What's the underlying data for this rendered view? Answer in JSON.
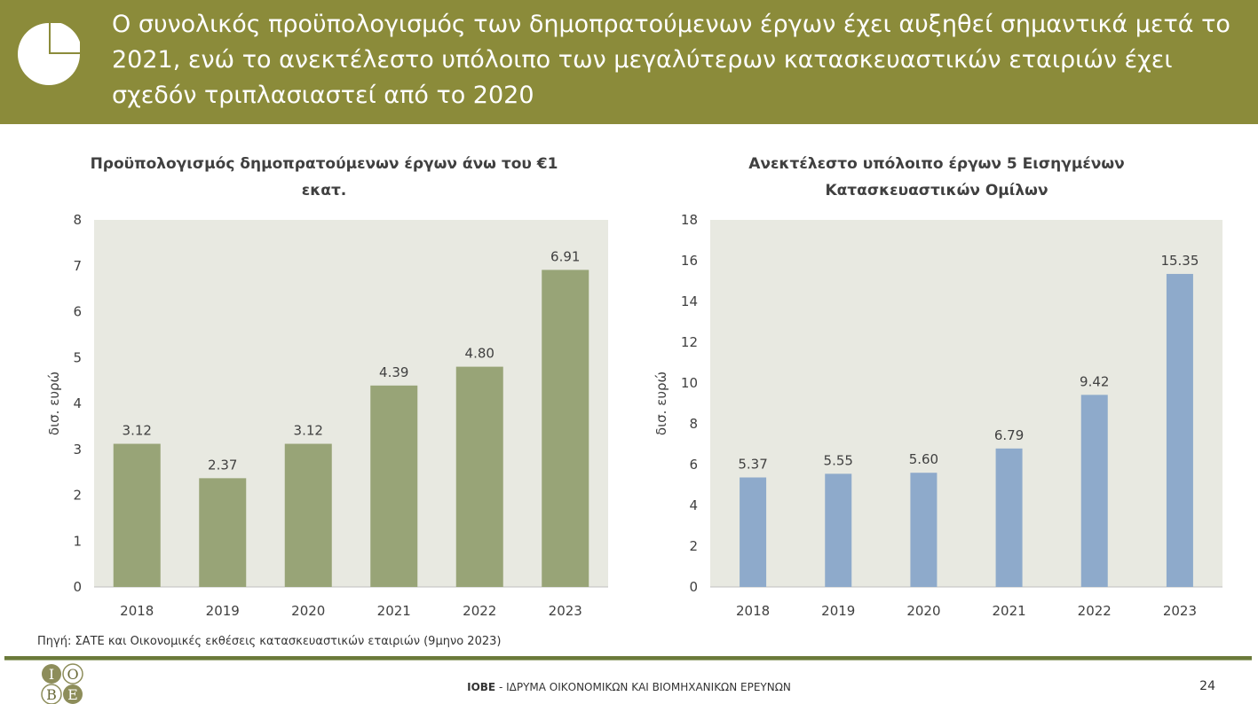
{
  "header": {
    "title": "Ο συνολικός προϋπολογισμός των δημοπρατούμενων έργων έχει αυξηθεί σημαντικά μετά το 2021, ενώ το ανεκτέλεστο υπόλοιπο των μεγαλύτερων κατασκευαστικών εταιριών έχει σχεδόν τριπλασιαστεί από το 2020",
    "icon": "pie-chart-icon",
    "background_color": "#8b8b3a"
  },
  "chart_data": [
    {
      "type": "bar",
      "title": "Προϋπολογισμός δημοπρατούμενων έργων άνω του €1 εκατ.",
      "ylabel": "δισ. ευρώ",
      "categories": [
        "2018",
        "2019",
        "2020",
        "2021",
        "2022",
        "2023"
      ],
      "values": [
        3.12,
        2.37,
        3.12,
        4.39,
        4.8,
        6.91
      ],
      "value_labels": [
        "3.12",
        "2.37",
        "3.12",
        "4.39",
        "4.80",
        "6.91"
      ],
      "ylim": [
        0,
        8
      ],
      "yticks": [
        0,
        1,
        2,
        3,
        4,
        5,
        6,
        7,
        8
      ],
      "bar_color": "#98a477",
      "plot_background": "#e8e9e1",
      "grid": false
    },
    {
      "type": "bar",
      "title": "Ανεκτέλεστο υπόλοιπο έργων 5 Εισηγμένων Κατασκευαστικών Ομίλων",
      "ylabel": "δισ. ευρώ",
      "categories": [
        "2018",
        "2019",
        "2020",
        "2021",
        "2022",
        "2023"
      ],
      "values": [
        5.37,
        5.55,
        5.6,
        6.79,
        9.42,
        15.35
      ],
      "value_labels": [
        "5.37",
        "5.55",
        "5.60",
        "6.79",
        "9.42",
        "15.35"
      ],
      "ylim": [
        0,
        18
      ],
      "yticks": [
        0,
        2,
        4,
        6,
        8,
        10,
        12,
        14,
        16,
        18
      ],
      "bar_color": "#8eaacb",
      "plot_background": "#e8e9e1",
      "grid": false
    }
  ],
  "source": "Πηγή: ΣΑΤΕ και Οικονομικές εκθέσεις κατασκευαστικών εταιριών (9μηνο 2023)",
  "footer": {
    "org_abbr": "ΙΟΒΕ",
    "org_name": " - ΙΔΡΥΜΑ ΟΙΚΟΝΟΜΙΚΩΝ ΚΑΙ ΒΙΟΜΗΧΑΝΙΚΩΝ ΕΡΕΥΝΩΝ",
    "page_number": "24",
    "logo_letters": [
      "Ι",
      "Ο",
      "Β",
      "Ε"
    ]
  }
}
